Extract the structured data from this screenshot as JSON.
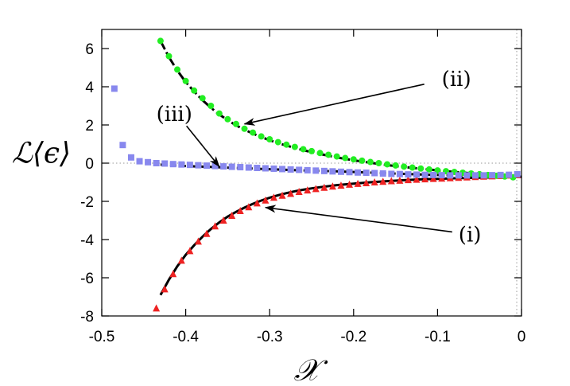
{
  "chart_data": {
    "type": "scatter",
    "xlabel": "𝒳",
    "ylabel": "ℒ⟨ϵ⟩",
    "xlim": [
      -0.5,
      0.0
    ],
    "ylim": [
      -8,
      7
    ],
    "xticks": [
      "-0.5",
      "-0.4",
      "-0.3",
      "-0.2",
      "-0.1",
      "0"
    ],
    "yticks": [
      "6",
      "4",
      "2",
      "0",
      "-2",
      "-4",
      "-6",
      "-8"
    ],
    "xtick_values": [
      -0.5,
      -0.4,
      -0.3,
      -0.2,
      -0.1,
      0
    ],
    "ytick_values": [
      6,
      4,
      2,
      0,
      -2,
      -4,
      -6,
      -8
    ],
    "reference_lines": {
      "y_zero_dotted": true,
      "x_zero_dotted": true
    },
    "series": [
      {
        "marker": "triangle",
        "color": "#ee2222",
        "x": [
          -0.435,
          -0.425,
          -0.415,
          -0.405,
          -0.395,
          -0.385,
          -0.375,
          -0.365,
          -0.355,
          -0.345,
          -0.335,
          -0.325,
          -0.315,
          -0.305,
          -0.295,
          -0.285,
          -0.275,
          -0.265,
          -0.255,
          -0.245,
          -0.235,
          -0.225,
          -0.215,
          -0.205,
          -0.195,
          -0.185,
          -0.175,
          -0.165,
          -0.155,
          -0.145,
          -0.135,
          -0.125,
          -0.115,
          -0.105,
          -0.095,
          -0.085,
          -0.075,
          -0.065,
          -0.055,
          -0.045,
          -0.035,
          -0.025,
          -0.015,
          -0.005
        ],
        "y": [
          -7.6,
          -6.6,
          -5.8,
          -5.1,
          -4.6,
          -4.1,
          -3.7,
          -3.3,
          -3.0,
          -2.75,
          -2.5,
          -2.3,
          -2.1,
          -1.95,
          -1.8,
          -1.7,
          -1.6,
          -1.5,
          -1.42,
          -1.35,
          -1.28,
          -1.22,
          -1.17,
          -1.12,
          -1.08,
          -1.04,
          -1.0,
          -0.97,
          -0.94,
          -0.91,
          -0.88,
          -0.86,
          -0.84,
          -0.82,
          -0.8,
          -0.78,
          -0.76,
          -0.74,
          -0.72,
          -0.7,
          -0.68,
          -0.66,
          -0.64,
          -0.62
        ]
      },
      {
        "marker": "circle",
        "color": "#22ee22",
        "x": [
          -0.43,
          -0.42,
          -0.41,
          -0.4,
          -0.39,
          -0.38,
          -0.37,
          -0.36,
          -0.35,
          -0.34,
          -0.33,
          -0.32,
          -0.31,
          -0.3,
          -0.29,
          -0.28,
          -0.27,
          -0.26,
          -0.25,
          -0.24,
          -0.23,
          -0.22,
          -0.21,
          -0.2,
          -0.19,
          -0.18,
          -0.17,
          -0.16,
          -0.15,
          -0.14,
          -0.13,
          -0.12,
          -0.11,
          -0.1,
          -0.09,
          -0.08,
          -0.07,
          -0.06,
          -0.05,
          -0.04,
          -0.03,
          -0.02,
          -0.01
        ],
        "y": [
          6.4,
          5.6,
          4.9,
          4.3,
          3.8,
          3.4,
          3.0,
          2.6,
          2.3,
          2.05,
          1.8,
          1.6,
          1.4,
          1.25,
          1.1,
          0.97,
          0.85,
          0.73,
          0.63,
          0.53,
          0.44,
          0.35,
          0.27,
          0.2,
          0.13,
          0.06,
          0.0,
          -0.06,
          -0.12,
          -0.18,
          -0.23,
          -0.28,
          -0.33,
          -0.38,
          -0.42,
          -0.46,
          -0.5,
          -0.54,
          -0.58,
          -0.62,
          -0.66,
          -0.7,
          -0.74
        ]
      },
      {
        "marker": "square",
        "color": "#8888ee",
        "x": [
          -0.485,
          -0.475,
          -0.465,
          -0.455,
          -0.445,
          -0.435,
          -0.425,
          -0.415,
          -0.405,
          -0.395,
          -0.385,
          -0.375,
          -0.365,
          -0.355,
          -0.345,
          -0.335,
          -0.325,
          -0.315,
          -0.305,
          -0.295,
          -0.285,
          -0.275,
          -0.265,
          -0.255,
          -0.245,
          -0.235,
          -0.225,
          -0.215,
          -0.205,
          -0.195,
          -0.185,
          -0.175,
          -0.165,
          -0.155,
          -0.145,
          -0.135,
          -0.125,
          -0.115,
          -0.105,
          -0.095,
          -0.085,
          -0.075,
          -0.065,
          -0.055,
          -0.045,
          -0.035,
          -0.025,
          -0.015,
          -0.005
        ],
        "y": [
          3.9,
          0.95,
          0.3,
          0.1,
          0.05,
          0.0,
          -0.02,
          -0.05,
          -0.07,
          -0.09,
          -0.11,
          -0.13,
          -0.15,
          -0.17,
          -0.19,
          -0.21,
          -0.23,
          -0.25,
          -0.27,
          -0.29,
          -0.31,
          -0.33,
          -0.35,
          -0.37,
          -0.39,
          -0.41,
          -0.43,
          -0.45,
          -0.47,
          -0.49,
          -0.5,
          -0.52,
          -0.54,
          -0.56,
          -0.57,
          -0.59,
          -0.6,
          -0.61,
          -0.62,
          -0.63,
          -0.64,
          -0.64,
          -0.64,
          -0.64,
          -0.64,
          -0.63,
          -0.62,
          -0.61,
          -0.58
        ]
      }
    ],
    "fit_curves": [
      {
        "style": "solid",
        "color": "#000000",
        "x": [
          -0.43,
          -0.42,
          -0.41,
          -0.4,
          -0.39,
          -0.38,
          -0.37,
          -0.36,
          -0.35,
          -0.34,
          -0.33,
          -0.32,
          -0.31,
          -0.3,
          -0.29,
          -0.28,
          -0.27,
          -0.26,
          -0.25,
          -0.24,
          -0.22,
          -0.2,
          -0.18,
          -0.16,
          -0.14,
          -0.12,
          -0.1,
          -0.08,
          -0.06,
          -0.04,
          -0.02,
          0.0
        ],
        "y": [
          -6.9,
          -6.1,
          -5.4,
          -4.8,
          -4.3,
          -3.85,
          -3.45,
          -3.1,
          -2.8,
          -2.55,
          -2.33,
          -2.13,
          -1.96,
          -1.81,
          -1.68,
          -1.57,
          -1.47,
          -1.39,
          -1.32,
          -1.26,
          -1.15,
          -1.07,
          -1.0,
          -0.94,
          -0.89,
          -0.85,
          -0.82,
          -0.79,
          -0.77,
          -0.75,
          -0.73,
          -0.72
        ]
      },
      {
        "style": "dash-dot",
        "color": "#000000",
        "x": [
          -0.43,
          -0.42,
          -0.41,
          -0.4,
          -0.39,
          -0.38,
          -0.37,
          -0.36,
          -0.35,
          -0.34,
          -0.33,
          -0.32,
          -0.31,
          -0.3,
          -0.29,
          -0.28,
          -0.27,
          -0.26,
          -0.25,
          -0.24,
          -0.22,
          -0.2,
          -0.18,
          -0.16,
          -0.14,
          -0.12,
          -0.1,
          -0.08,
          -0.06,
          -0.04,
          -0.02,
          0.0
        ],
        "y": [
          6.4,
          5.55,
          4.85,
          4.25,
          3.75,
          3.3,
          2.9,
          2.55,
          2.25,
          1.98,
          1.75,
          1.55,
          1.37,
          1.2,
          1.05,
          0.92,
          0.8,
          0.68,
          0.58,
          0.48,
          0.3,
          0.15,
          0.02,
          -0.1,
          -0.2,
          -0.29,
          -0.38,
          -0.46,
          -0.53,
          -0.6,
          -0.66,
          -0.72
        ]
      },
      {
        "style": "dashed",
        "color": "#000000",
        "x": [
          -0.43,
          -0.4,
          -0.37,
          -0.34,
          -0.31,
          -0.28,
          -0.25,
          -0.22,
          -0.19,
          -0.16,
          -0.13,
          -0.1,
          -0.07,
          -0.04,
          -0.01
        ],
        "y": [
          -0.08,
          -0.15,
          -0.2,
          -0.25,
          -0.3,
          -0.35,
          -0.39,
          -0.43,
          -0.48,
          -0.53,
          -0.58,
          -0.62,
          -0.65,
          -0.68,
          -0.7
        ]
      }
    ],
    "annotations": [
      {
        "text": "(i)",
        "x": -0.075,
        "y": -4.1,
        "arrow_to": [
          -0.305,
          -2.32
        ]
      },
      {
        "text": "(ii)",
        "x": -0.095,
        "y": 4.05,
        "arrow_to": [
          -0.33,
          2.05
        ]
      },
      {
        "text": "(iii)",
        "x": -0.435,
        "y": 2.2,
        "arrow_to": [
          -0.36,
          -0.18
        ]
      }
    ]
  }
}
